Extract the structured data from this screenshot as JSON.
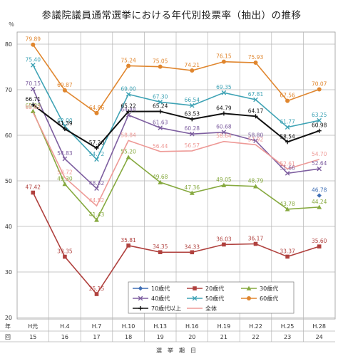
{
  "title": "参議院議員通常選挙における年代別投票率（抽出）の推移",
  "chart_data": {
    "type": "line",
    "title": "参議院議員通常選挙における年代別投票率（抽出）の推移",
    "ylabel": "％",
    "xlabel": "選　挙　期　日",
    "y_axis_row_labels": [
      "年",
      "回"
    ],
    "ylim": [
      20,
      80
    ],
    "yticks": [
      20,
      30,
      40,
      50,
      60,
      70,
      80
    ],
    "x_dates": [
      "H元",
      "H.4",
      "H.7",
      "H.10",
      "H.13",
      "H.16",
      "H.19",
      "H.22",
      "H.25",
      "H.28"
    ],
    "x_rounds": [
      "15",
      "16",
      "17",
      "18",
      "19",
      "20",
      "21",
      "22",
      "23",
      "24"
    ],
    "grid": true,
    "legend_position": "bottom",
    "series": [
      {
        "name": "10歳代",
        "color": "#3f6fb5",
        "marker": "diamond",
        "values": [
          null,
          null,
          null,
          null,
          null,
          null,
          null,
          null,
          null,
          46.78
        ],
        "labels": [
          null,
          null,
          null,
          null,
          null,
          null,
          null,
          null,
          null,
          "46.78"
        ]
      },
      {
        "name": "20歳代",
        "color": "#b0413e",
        "marker": "square",
        "values": [
          47.42,
          33.35,
          25.15,
          35.81,
          34.35,
          34.33,
          36.03,
          36.17,
          33.37,
          35.6
        ],
        "labels": [
          "47.42",
          "33.35",
          "25.15",
          "35.81",
          "34.35",
          "34.33",
          "36.03",
          "36.17",
          "33.37",
          "35.60"
        ]
      },
      {
        "name": "30歳代",
        "color": "#86a93f",
        "marker": "triangle",
        "values": [
          65.29,
          49.3,
          41.43,
          55.2,
          49.68,
          47.36,
          49.05,
          48.79,
          43.78,
          44.24
        ],
        "labels": [
          "65.29",
          "49.30",
          "41.43",
          "55.20",
          "49.68",
          "47.36",
          "49.05",
          "48.79",
          "43.78",
          "44.24"
        ]
      },
      {
        "name": "40歳代",
        "color": "#7e5fa0",
        "marker": "x",
        "values": [
          70.15,
          54.83,
          48.32,
          64.44,
          61.63,
          60.28,
          60.68,
          58.8,
          51.66,
          52.64
        ],
        "labels": [
          "70.15",
          "54.83",
          "48.32",
          "64.44",
          "61.63",
          "60.28",
          "60.68",
          "58.80",
          "51.66",
          "52.64"
        ]
      },
      {
        "name": "50歳代",
        "color": "#3fa3b5",
        "marker": "x",
        "values": [
          75.4,
          62.0,
          54.72,
          69.0,
          67.3,
          66.54,
          69.35,
          67.81,
          61.77,
          63.25
        ],
        "labels": [
          "75.40",
          "62.00",
          "54.72",
          "69.00",
          "67.30",
          "66.54",
          "69.35",
          "67.81",
          "61.77",
          "63.25"
        ]
      },
      {
        "name": "60歳代",
        "color": "#e0862e",
        "marker": "circle",
        "values": [
          79.89,
          69.87,
          64.86,
          75.24,
          75.05,
          74.21,
          76.15,
          75.93,
          67.56,
          70.07
        ],
        "labels": [
          "79.89",
          "69.87",
          "64.86",
          "75.24",
          "75.05",
          "74.21",
          "76.15",
          "75.93",
          "67.56",
          "70.07"
        ]
      },
      {
        "name": "70歳代以上",
        "color": "#111111",
        "marker": "plus",
        "values": [
          66.71,
          61.39,
          57.2,
          65.22,
          65.24,
          63.53,
          64.79,
          64.17,
          58.54,
          60.98
        ],
        "labels": [
          "66.71",
          "61.39",
          "57.20",
          "65.22",
          "65.24",
          "63.53",
          "64.79",
          "64.17",
          "58.54",
          "60.98"
        ]
      },
      {
        "name": "全体",
        "color": "#ee9a97",
        "marker": "none",
        "values": [
          65.02,
          50.72,
          44.52,
          58.84,
          56.44,
          56.57,
          58.64,
          57.92,
          52.61,
          54.7
        ],
        "labels": [
          "65.02",
          "50.72",
          "44.52",
          "58.84",
          "56.44",
          "56.57",
          "58.64",
          "57.92",
          "52.61",
          "54.70"
        ]
      }
    ]
  }
}
